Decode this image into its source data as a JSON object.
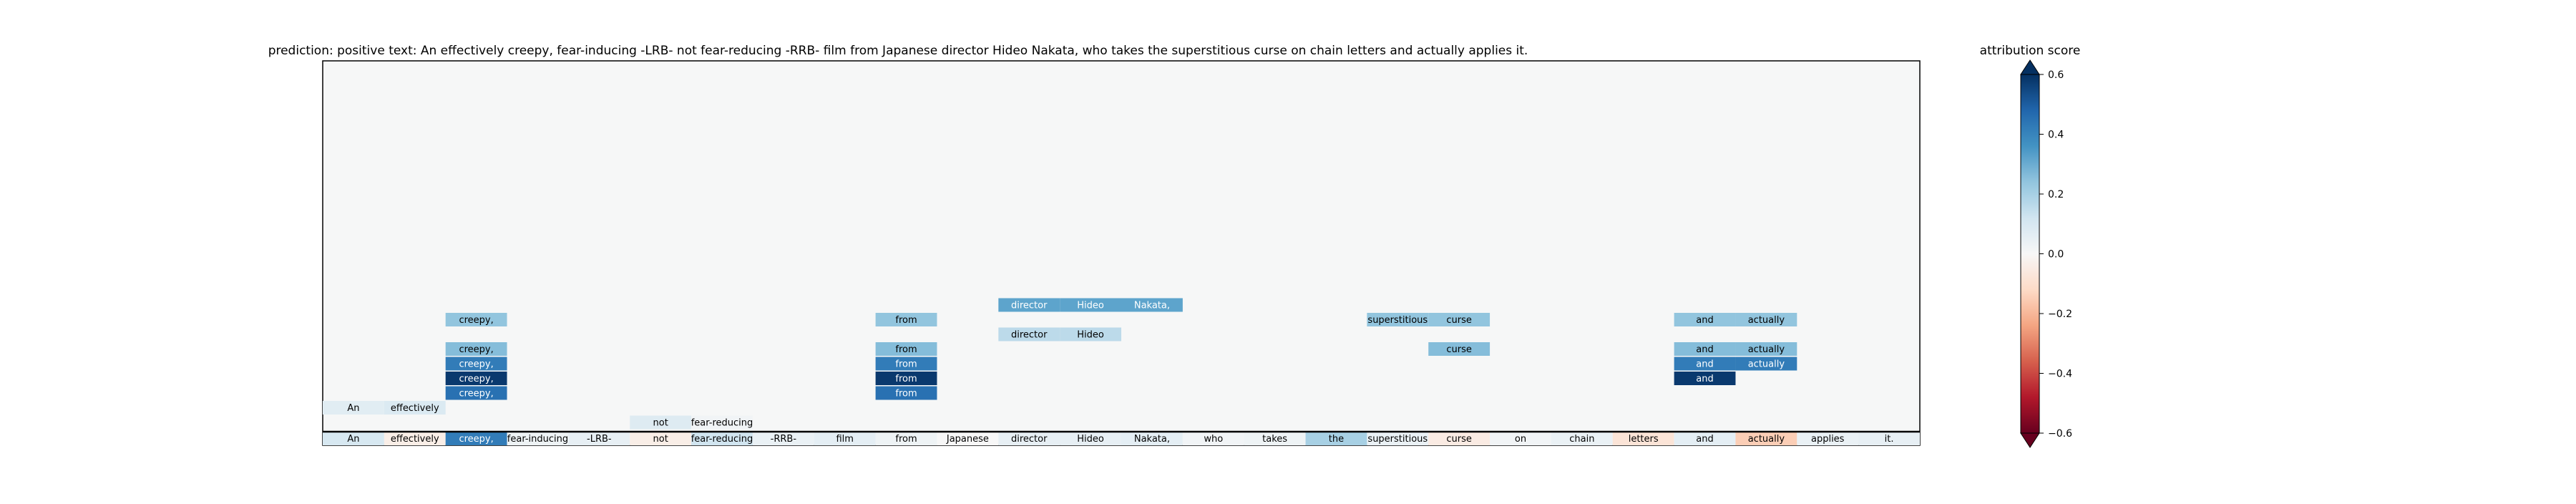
{
  "chart_data": {
    "type": "heatmap",
    "title": "prediction:  positive     text:  An effectively creepy, fear-inducing -LRB- not fear-reducing -RRB- film from Japanese director Hideo Nakata, who takes the superstitious curse on chain letters and actually applies it.",
    "tokens": [
      "An",
      "effectively",
      "creepy,",
      "fear-inducing",
      "-LRB-",
      "not",
      "fear-reducing",
      "-RRB-",
      "film",
      "from",
      "Japanese",
      "director",
      "Hideo",
      "Nakata,",
      "who",
      "takes",
      "the",
      "superstitious",
      "curse",
      "on",
      "chain",
      "letters",
      "and",
      "actually",
      "applies",
      "it."
    ],
    "base_scores": [
      0.1,
      -0.04,
      0.42,
      0.03,
      0.05,
      -0.04,
      0.12,
      0.04,
      0.06,
      0.03,
      0.0,
      0.05,
      0.05,
      0.06,
      0.02,
      0.03,
      0.2,
      0.04,
      -0.05,
      0.02,
      0.04,
      -0.08,
      0.06,
      -0.15,
      0.04,
      0.05
    ],
    "layers": [
      {
        "level": 1,
        "cells": [
          {
            "token": 5,
            "score": 0.08
          },
          {
            "token": 6,
            "score": 0.02
          }
        ]
      },
      {
        "level": 2,
        "cells": [
          {
            "token": 0,
            "score": 0.07
          },
          {
            "token": 1,
            "score": 0.09
          }
        ]
      },
      {
        "level": 3,
        "cells": [
          {
            "token": 2,
            "score": 0.45
          },
          {
            "token": 9,
            "score": 0.45
          }
        ]
      },
      {
        "level": 4,
        "cells": [
          {
            "token": 2,
            "score": 0.58
          },
          {
            "token": 9,
            "score": 0.58
          },
          {
            "token": 22,
            "score": 0.58
          }
        ]
      },
      {
        "level": 5,
        "cells": [
          {
            "token": 2,
            "score": 0.42
          },
          {
            "token": 9,
            "score": 0.42
          },
          {
            "token": 22,
            "score": 0.42
          },
          {
            "token": 23,
            "score": 0.42
          }
        ]
      },
      {
        "level": 6,
        "cells": [
          {
            "token": 2,
            "score": 0.26
          },
          {
            "token": 9,
            "score": 0.26
          },
          {
            "token": 22,
            "score": 0.26
          },
          {
            "token": 23,
            "score": 0.26
          },
          {
            "token": 18,
            "score": 0.26
          }
        ]
      },
      {
        "level": 7,
        "cells": [
          {
            "token": 11,
            "score": 0.16
          },
          {
            "token": 12,
            "score": 0.16
          }
        ]
      },
      {
        "level": 8,
        "cells": [
          {
            "token": 2,
            "score": 0.24
          },
          {
            "token": 9,
            "score": 0.24
          },
          {
            "token": 17,
            "score": 0.24
          },
          {
            "token": 18,
            "score": 0.24
          },
          {
            "token": 22,
            "score": 0.24
          },
          {
            "token": 23,
            "score": 0.24
          }
        ]
      },
      {
        "level": 9,
        "cells": [
          {
            "token": 11,
            "score": 0.32
          },
          {
            "token": 12,
            "score": 0.32
          },
          {
            "token": 13,
            "score": 0.32
          }
        ]
      }
    ],
    "colorbar": {
      "label": "attribution score",
      "range": [
        -0.6,
        0.6
      ],
      "ticks": [
        0.6,
        0.4,
        0.2,
        0.0,
        -0.2,
        -0.4,
        -0.6
      ],
      "tick_labels": [
        "0.6",
        "0.4",
        "0.2",
        "0.0",
        "−0.2",
        "−0.4",
        "−0.6"
      ],
      "colormap": "RdBu"
    },
    "plot_background": "#f6f7f7"
  }
}
